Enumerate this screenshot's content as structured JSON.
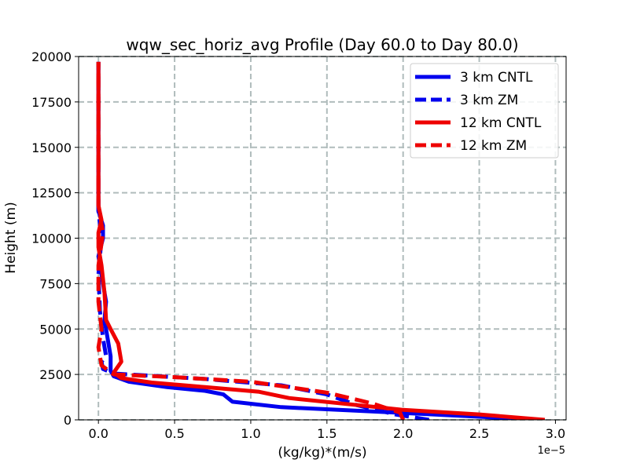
{
  "chart_data": {
    "type": "line",
    "title": "wqw_sec_horiz_avg Profile (Day 60.0 to Day 80.0)",
    "xlabel": "(kg/kg)*(m/s)",
    "ylabel": "Height (m)",
    "x_offset_label": "1e−5",
    "xlim": [
      -0.13,
      3.07
    ],
    "ylim": [
      0,
      20000
    ],
    "xticks": [
      0.0,
      0.5,
      1.0,
      1.5,
      2.0,
      2.5,
      3.0
    ],
    "xtick_labels": [
      "0.0",
      "0.5",
      "1.0",
      "1.5",
      "2.0",
      "2.5",
      "3.0"
    ],
    "yticks": [
      0,
      2500,
      5000,
      7500,
      10000,
      12500,
      15000,
      17500,
      20000
    ],
    "ytick_labels": [
      "0",
      "2500",
      "5000",
      "7500",
      "10000",
      "12500",
      "15000",
      "17500",
      "20000"
    ],
    "grid": true,
    "legend_position": "top-right",
    "series": [
      {
        "name": "3 km CNTL",
        "color": "#0000ee",
        "style": "solid",
        "x": [
          2.78,
          2.55,
          2.2,
          1.7,
          1.2,
          0.88,
          0.82,
          0.7,
          0.45,
          0.2,
          0.1,
          0.08,
          0.08,
          0.06,
          0.05,
          0.04,
          0.05,
          0.02,
          0.0,
          0.03,
          0.03,
          0.0,
          0.0,
          0.0
        ],
        "y": [
          0,
          150,
          300,
          500,
          700,
          1000,
          1400,
          1600,
          1800,
          2100,
          2400,
          2700,
          3500,
          4500,
          5000,
          5500,
          6500,
          8000,
          9000,
          10000,
          10700,
          11500,
          12500,
          19700
        ]
      },
      {
        "name": "3 km ZM",
        "color": "#0000ee",
        "style": "dashed",
        "x": [
          2.17,
          1.95,
          1.7,
          1.5,
          1.2,
          0.7,
          0.1,
          0.03,
          0.02,
          0.05,
          0.03,
          0.01,
          0.0,
          0.02,
          0.0,
          0.0,
          0.0
        ],
        "y": [
          0,
          300,
          800,
          1400,
          1900,
          2250,
          2550,
          2800,
          3200,
          3500,
          4500,
          6000,
          8000,
          10000,
          11500,
          12500,
          19700
        ]
      },
      {
        "name": "12 km CNTL",
        "color": "#ee0000",
        "style": "solid",
        "x": [
          2.93,
          2.5,
          2.0,
          1.6,
          1.25,
          1.05,
          0.7,
          0.35,
          0.15,
          0.1,
          0.15,
          0.13,
          0.08,
          0.05,
          0.04,
          0.02,
          0.0,
          0.0,
          0.02,
          0.0,
          0.0,
          0.0
        ],
        "y": [
          0,
          300,
          550,
          900,
          1200,
          1550,
          1800,
          2050,
          2300,
          2600,
          3200,
          4200,
          5000,
          5500,
          7000,
          8500,
          9500,
          10300,
          11000,
          11800,
          12500,
          19700
        ]
      },
      {
        "name": "12 km ZM",
        "color": "#ee0000",
        "style": "dashed",
        "x": [
          2.0,
          1.98,
          1.8,
          1.5,
          1.0,
          0.5,
          0.1,
          0.02,
          0.0,
          0.02,
          0.0,
          0.0,
          0.03,
          0.0,
          0.0,
          0.0
        ],
        "y": [
          0,
          400,
          900,
          1500,
          2100,
          2350,
          2500,
          3000,
          4000,
          5000,
          6500,
          8500,
          10300,
          11800,
          12500,
          19700
        ]
      }
    ]
  }
}
